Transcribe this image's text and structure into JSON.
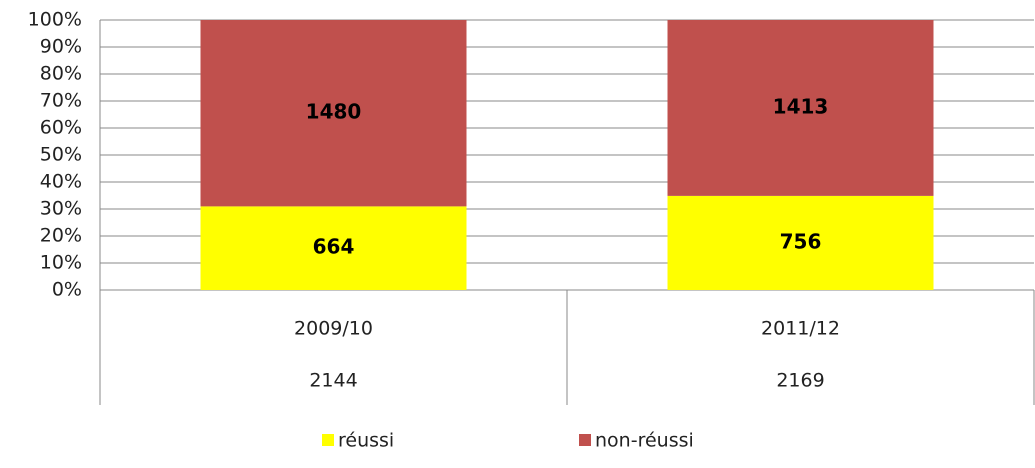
{
  "chart_data": {
    "type": "bar",
    "stacking": "percent",
    "categories": [
      "2009/10",
      "2011/12"
    ],
    "category_totals": [
      2144,
      2169
    ],
    "series": [
      {
        "name": "réussi",
        "color": "#ffff00",
        "values": [
          664,
          756
        ]
      },
      {
        "name": "non-réussi",
        "color": "#c0504d",
        "values": [
          1480,
          1413
        ]
      }
    ],
    "ylim": [
      0,
      100
    ],
    "yticks": [
      {
        "value": 0,
        "label": "0%"
      },
      {
        "value": 10,
        "label": "10%"
      },
      {
        "value": 20,
        "label": "20%"
      },
      {
        "value": 30,
        "label": "30%"
      },
      {
        "value": 40,
        "label": "40%"
      },
      {
        "value": 50,
        "label": "50%"
      },
      {
        "value": 60,
        "label": "60%"
      },
      {
        "value": 70,
        "label": "70%"
      },
      {
        "value": 80,
        "label": "80%"
      },
      {
        "value": 90,
        "label": "90%"
      },
      {
        "value": 100,
        "label": "100%"
      }
    ],
    "grid": true,
    "legend": "bottom"
  }
}
